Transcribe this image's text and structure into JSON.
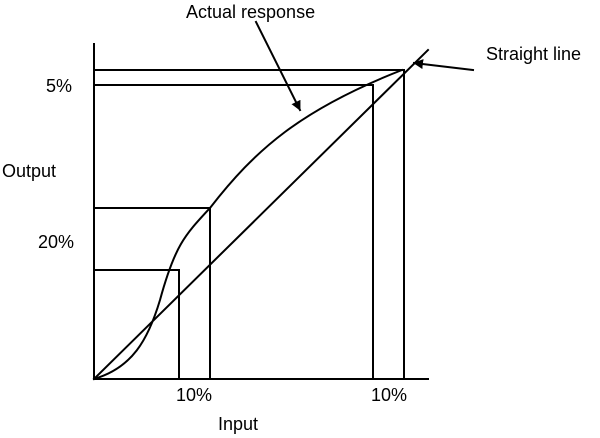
{
  "labels": {
    "actual_response": "Actual response",
    "straight_line": "Straight line",
    "output_axis": "Output",
    "input_axis": "Input",
    "y_tick_top": "5%",
    "y_tick_mid": "20%",
    "x_tick_left": "10%",
    "x_tick_right": "10%"
  },
  "colors": {
    "stroke": "#000000",
    "background": "#ffffff"
  }
}
